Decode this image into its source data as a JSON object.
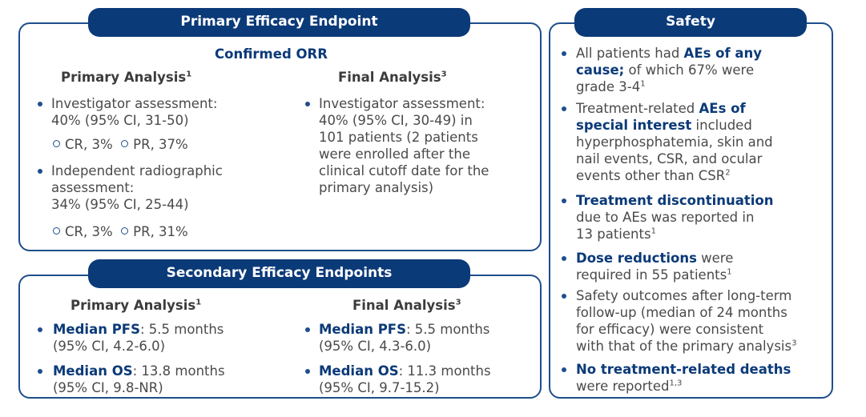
{
  "primary": {
    "title": "Primary Efficacy Endpoint",
    "subtitle": "Confirmed ORR",
    "primary_analysis": {
      "heading": "Primary Analysis",
      "sup": "1",
      "item1_line1": "Investigator assessment:",
      "item1_line2": "40% (95% CI, 31-50)",
      "item1_sub_cr": "CR, 3%",
      "item1_sub_pr": "PR, 37%",
      "item2_line1": "Independent radiographic",
      "item2_line2": "assessment:",
      "item2_line3": "34% (95% CI, 25-44)",
      "item2_sub_cr": "CR, 3%",
      "item2_sub_pr": "PR, 31%"
    },
    "final_analysis": {
      "heading": "Final Analysis",
      "sup": "3",
      "lines": [
        "Investigator assessment:",
        "40% (95% CI, 30-49) in",
        "101 patients (2 patients",
        "were enrolled after the",
        "clinical cutoff date for the",
        "primary analysis)"
      ]
    }
  },
  "secondary": {
    "title": "Secondary Efficacy Endpoints",
    "primary_analysis": {
      "heading": "Primary Analysis",
      "sup": "1",
      "pfs_label": "Median PFS",
      "pfs_value": ": 5.5 months",
      "pfs_ci": "(95% CI, 4.2-6.0)",
      "os_label": "Median OS",
      "os_value": ": 13.8 months",
      "os_ci": "(95% CI, 9.8-NR)"
    },
    "final_analysis": {
      "heading": "Final Analysis",
      "sup": "3",
      "pfs_label": "Median PFS",
      "pfs_value": ": 5.5 months",
      "pfs_ci": "(95% CI, 4.3-6.0)",
      "os_label": "Median OS",
      "os_value": ": 11.3 months",
      "os_ci": "(95% CI, 9.7-15.2)"
    }
  },
  "safety": {
    "title": "Safety",
    "b1": {
      "pre": "All patients had ",
      "hl1": "AEs of any",
      "hl2": "cause;",
      "post1": " of which 67% were",
      "post2": "grade 3-4",
      "sup": "1"
    },
    "b2": {
      "pre": "Treatment-related ",
      "hl1": "AEs of",
      "hl2": "special interest",
      "post1": " included",
      "l3": "hyperphosphatemia, skin and",
      "l4": "nail events, CSR, and ocular",
      "l5": "events other than CSR",
      "sup": "2"
    },
    "b3": {
      "hl": "Treatment discontinuation",
      "l2": "due to AEs was reported in",
      "l3": "13 patients",
      "sup": "1"
    },
    "b4": {
      "hl": "Dose reductions",
      "post": " were",
      "l2": "required in 55 patients",
      "sup": "1"
    },
    "b5": {
      "l1": "Safety outcomes after long-term",
      "l2": "follow-up (median of 24 months",
      "l3": "for efficacy) were consistent",
      "l4": "with that of the primary analysis",
      "sup": "3"
    },
    "b6": {
      "hl": "No treatment-related deaths",
      "l2": "were reported",
      "sup": "1,3"
    }
  },
  "colors": {
    "brand": "#0b3a78",
    "border": "#1f4e8c",
    "text": "#4a4a4a"
  }
}
